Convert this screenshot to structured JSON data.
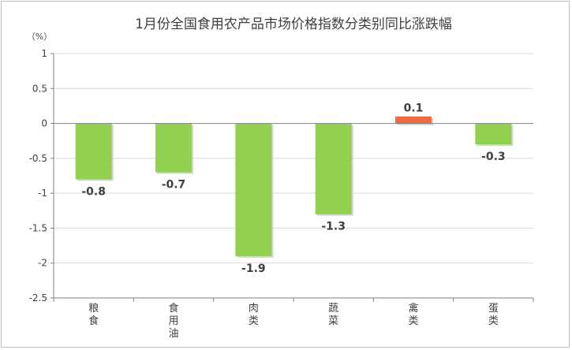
{
  "chart_data": {
    "type": "bar",
    "title": "1月份全国食用农产品市场价格指数分类别同比涨跌幅",
    "ylabel": "（%）",
    "xlabel": "",
    "ylim": [
      -2.5,
      1
    ],
    "yticks": [
      1,
      0.5,
      0,
      -0.5,
      -1,
      -1.5,
      -2,
      -2.5
    ],
    "ytick_labels": [
      "1",
      "0.5",
      "0",
      "-0.5",
      "-1",
      "-1.5",
      "-2",
      "-2.5"
    ],
    "grid": true,
    "legend": "none",
    "categories": [
      "粮食",
      "食用油",
      "肉类",
      "蔬菜",
      "禽类",
      "蛋类"
    ],
    "values": [
      -0.8,
      -0.7,
      -1.9,
      -1.3,
      0.1,
      -0.3
    ],
    "value_labels": [
      "-0.8",
      "-0.7",
      "-1.9",
      "-1.3",
      "0.1",
      "-0.3"
    ],
    "colors": {
      "negative": "#92d050",
      "positive": "#f26b43",
      "grid": "#d9d9d9",
      "axis": "#808080",
      "text": "#404040"
    }
  }
}
